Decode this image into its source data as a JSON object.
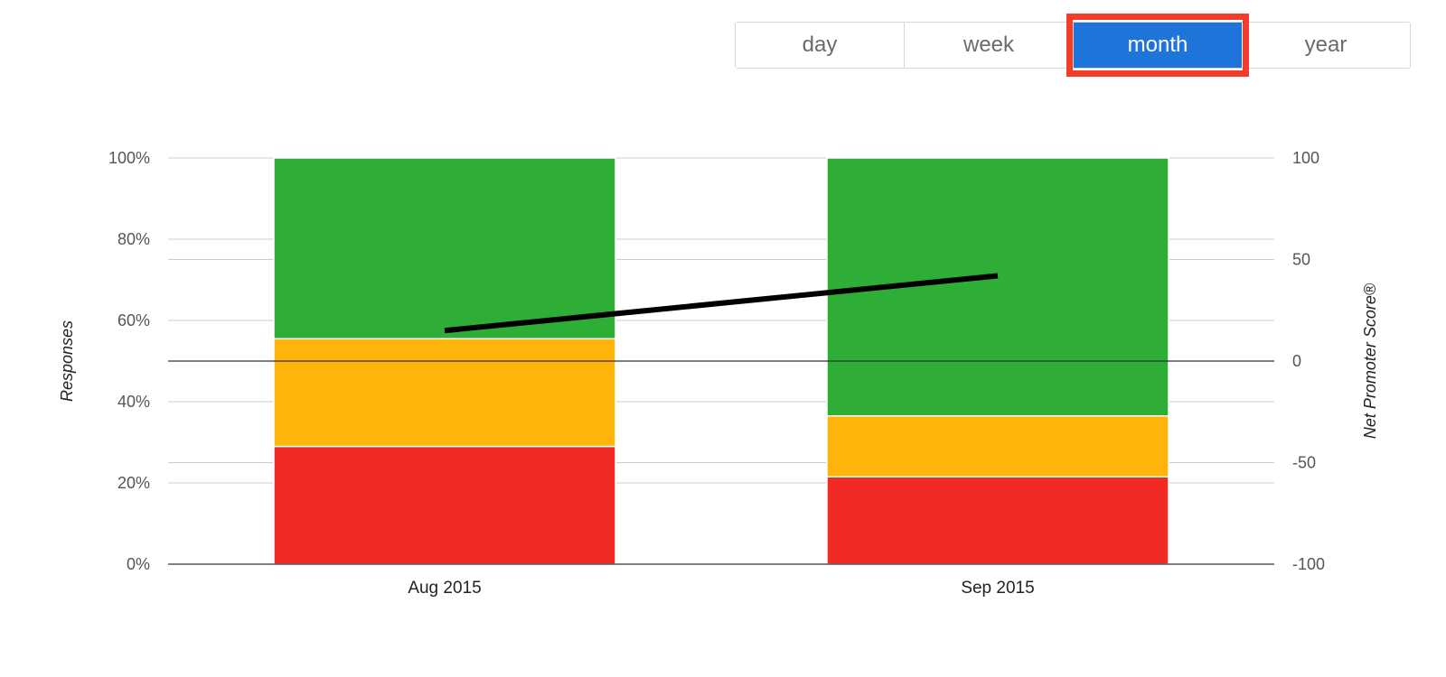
{
  "toolbar": {
    "buttons": [
      {
        "label": "day",
        "active": false
      },
      {
        "label": "week",
        "active": false
      },
      {
        "label": "month",
        "active": true
      },
      {
        "label": "year",
        "active": false
      }
    ]
  },
  "colors": {
    "promoters": "#2ead37",
    "passives": "#feb40a",
    "detractors": "#f12a24",
    "nps_line": "#000000",
    "active_button": "#1e74d8",
    "highlight_border": "#f53c2a"
  },
  "chart_data": {
    "type": "bar",
    "stacked": true,
    "categories": [
      "Aug 2015",
      "Sep 2015"
    ],
    "series": [
      {
        "values": [
          29,
          21.5
        ],
        "color": "#f12a24"
      },
      {
        "values": [
          26.5,
          15
        ],
        "color": "#feb40a"
      },
      {
        "values": [
          44.5,
          63.5
        ],
        "color": "#2ead37"
      }
    ],
    "line_series": {
      "values": [
        15,
        42
      ],
      "color": "#000000",
      "axis": "right"
    },
    "ylabel": "Responses",
    "ylabel_right": "Net Promoter Score®",
    "ylim": [
      0,
      100
    ],
    "ylim_right": [
      -100,
      100
    ],
    "yticks": [
      "0%",
      "20%",
      "40%",
      "60%",
      "80%",
      "100%"
    ],
    "yticks_right": [
      "-100",
      "-50",
      "0",
      "50",
      "100"
    ],
    "grid": true
  }
}
